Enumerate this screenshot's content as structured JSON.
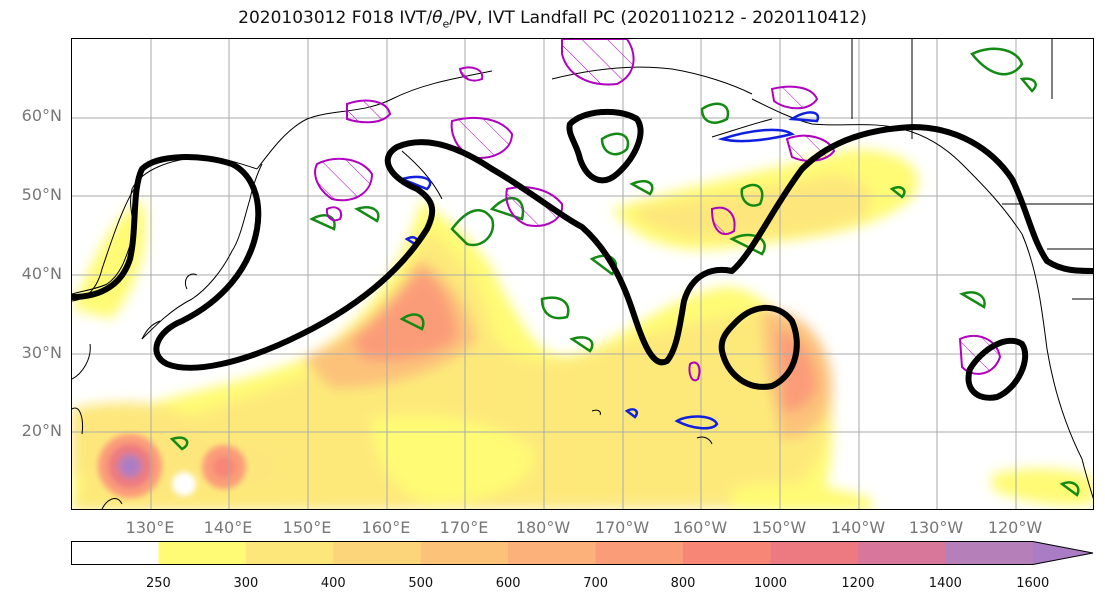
{
  "title": "2020103012 F018 IVT/θe/PV, IVT Landfall PC (2020110212 - 2020110412)",
  "title_parts": {
    "prefix": "2020103012 F018 IVT/",
    "theta": "θ",
    "sub": "e",
    "suffix": "/PV, IVT Landfall PC (2020110212 - 2020110412)"
  },
  "map": {
    "projection": "equirectangular",
    "lon_range_east": [
      120,
      250
    ],
    "lat_range": [
      10,
      70
    ],
    "gridlines": true,
    "lat_labels": [
      {
        "lat": 60,
        "text": "60°N"
      },
      {
        "lat": 50,
        "text": "50°N"
      },
      {
        "lat": 40,
        "text": "40°N"
      },
      {
        "lat": 30,
        "text": "30°N"
      },
      {
        "lat": 20,
        "text": "20°N"
      }
    ],
    "lon_labels": [
      {
        "lon": 130,
        "text": "130°E"
      },
      {
        "lon": 140,
        "text": "140°E"
      },
      {
        "lon": 150,
        "text": "150°E"
      },
      {
        "lon": 160,
        "text": "160°E"
      },
      {
        "lon": 170,
        "text": "170°E"
      },
      {
        "lon": 180,
        "text": "180°W"
      },
      {
        "lon": 190,
        "text": "170°W"
      },
      {
        "lon": 200,
        "text": "160°W"
      },
      {
        "lon": 210,
        "text": "150°W"
      },
      {
        "lon": 220,
        "text": "140°W"
      },
      {
        "lon": 230,
        "text": "130°W"
      },
      {
        "lon": 240,
        "text": "120°W"
      }
    ]
  },
  "colorbar": {
    "levels": [
      250,
      300,
      400,
      500,
      600,
      700,
      800,
      1000,
      1200,
      1400,
      1600
    ],
    "colors": [
      "#ffffff",
      "#fffb75",
      "#fde77b",
      "#fcd47a",
      "#fcc27a",
      "#fcb07a",
      "#fb9c79",
      "#f78677",
      "#ec7a80",
      "#d8779a",
      "#b57fba",
      "#a97cc4"
    ],
    "extend": "max"
  },
  "ivt_features": [
    {
      "lon": 165,
      "lat": 38,
      "value": 800
    },
    {
      "lon": 127,
      "lat": 16,
      "value": 1600
    },
    {
      "lon": 140,
      "lat": 15.5,
      "value": 900
    },
    {
      "lon": 209,
      "lat": 30,
      "value": 700
    },
    {
      "lon": 190,
      "lat": 48,
      "value": 500
    },
    {
      "lon": 212,
      "lat": 49,
      "value": 500
    }
  ]
}
